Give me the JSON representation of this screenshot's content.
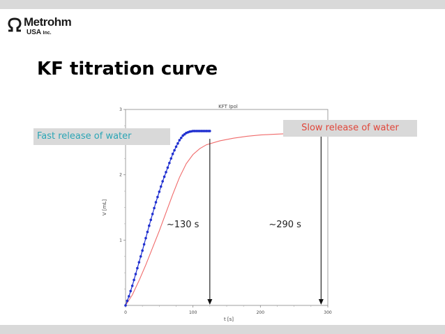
{
  "slide": {
    "title": "KF titration curve",
    "logo": {
      "name": "Metrohm",
      "sub": "USA",
      "sub_suffix": "Inc."
    },
    "callouts": {
      "fast": "Fast release of water",
      "slow": "Slow release of water"
    },
    "times": {
      "fast": "~130 s",
      "slow": "~290 s"
    },
    "colors": {
      "fast_text": "#2ba5b5",
      "slow_text": "#e0463a",
      "fast_series": "#1f2fd0",
      "slow_series": "#f06a6a"
    }
  },
  "chart_data": {
    "type": "line",
    "title": "KFT Ipol",
    "xlabel": "t [s]",
    "ylabel": "V [mL]",
    "xlim": [
      0,
      300
    ],
    "ylim": [
      0,
      3
    ],
    "xticks": [
      0,
      100,
      200,
      300
    ],
    "yticks": [
      1,
      2,
      3
    ],
    "series": [
      {
        "name": "",
        "style": "markers",
        "x": [
          0,
          5,
          10,
          15,
          20,
          25,
          30,
          35,
          40,
          45,
          50,
          55,
          60,
          65,
          70,
          75,
          80,
          85,
          90,
          95,
          100,
          105,
          110,
          115,
          120,
          125
        ],
        "y": [
          0.0,
          0.14,
          0.3,
          0.48,
          0.66,
          0.84,
          1.03,
          1.22,
          1.4,
          1.58,
          1.74,
          1.9,
          2.04,
          2.18,
          2.32,
          2.43,
          2.53,
          2.6,
          2.64,
          2.66,
          2.67,
          2.67,
          2.67,
          2.67,
          2.67,
          2.67
        ]
      },
      {
        "name": "",
        "style": "line",
        "x": [
          0,
          10,
          20,
          30,
          40,
          50,
          60,
          70,
          80,
          90,
          100,
          110,
          120,
          140,
          160,
          180,
          200,
          220,
          240,
          260,
          290
        ],
        "y": [
          0.0,
          0.16,
          0.38,
          0.62,
          0.88,
          1.14,
          1.42,
          1.7,
          1.96,
          2.17,
          2.31,
          2.4,
          2.46,
          2.52,
          2.56,
          2.59,
          2.61,
          2.62,
          2.63,
          2.64,
          2.65
        ]
      }
    ],
    "markers": [
      {
        "x": 125,
        "label": "~130 s"
      },
      {
        "x": 290,
        "label": "~290 s"
      }
    ]
  }
}
